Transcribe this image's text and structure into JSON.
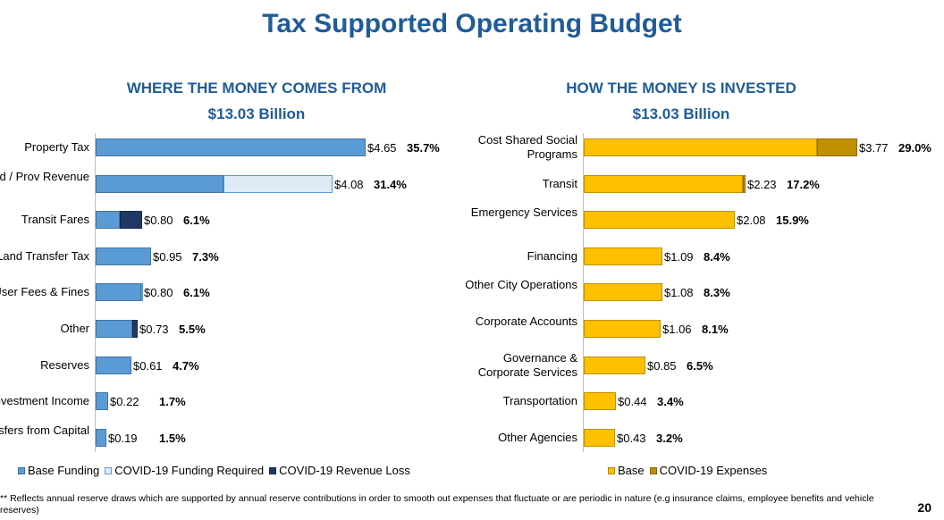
{
  "title": "Tax Supported Operating Budget",
  "footnote": "** Reflects annual reserve draws which are supported by annual reserve contributions in order to smooth out expenses that fluctuate or are periodic in nature (e.g insurance claims, employee benefits and vehicle reserves)",
  "page_number": "20",
  "colors": {
    "base_funding": "#5b9bd5",
    "covid_funding_required": "#ddebf7",
    "covid_revenue_loss": "#1f3864",
    "base": "#ffc000",
    "covid_expenses": "#bf9000"
  },
  "chart_data": [
    {
      "type": "bar",
      "orientation": "horizontal",
      "stacked": true,
      "title": "WHERE THE MONEY COMES FROM",
      "subtitle": "$13.03 Billion",
      "categories": [
        "Property Tax",
        "Fed / Prov Revenue",
        "Transit Fares",
        "Land Transfer Tax",
        "User Fees & Fines",
        "Other",
        "Reserves",
        "Investment Income",
        "Transfers from Capital"
      ],
      "series": [
        {
          "name": "Base Funding",
          "color_key": "base_funding",
          "values": [
            4.65,
            2.2,
            0.42,
            0.95,
            0.78,
            0.63,
            0.61,
            0.22,
            0.19
          ]
        },
        {
          "name": "COVID-19 Funding Required",
          "color_key": "covid_funding_required",
          "values": [
            0,
            1.88,
            0,
            0,
            0.02,
            0,
            0,
            0,
            0
          ]
        },
        {
          "name": "COVID-19 Revenue Loss",
          "color_key": "covid_revenue_loss",
          "values": [
            0,
            0,
            0.38,
            0,
            0,
            0.1,
            0,
            0,
            0
          ]
        }
      ],
      "value_labels": [
        "$4.65",
        "$4.08",
        "$0.80",
        "$0.95",
        "$0.80",
        "$0.73",
        "$0.61",
        "$0.22",
        "$0.19"
      ],
      "percent_labels": [
        "35.7%",
        "31.4%",
        "6.1%",
        "7.3%",
        "6.1%",
        "5.5%",
        "4.7%",
        "1.7%",
        "1.5%"
      ],
      "xlim": [
        0,
        4.65
      ],
      "legend": "bottom"
    },
    {
      "type": "bar",
      "orientation": "horizontal",
      "stacked": true,
      "title": "HOW THE MONEY IS INVESTED",
      "subtitle": "$13.03 Billion",
      "categories": [
        "Cost Shared Social Programs",
        "Transit",
        "Emergency Services",
        "Financing",
        "Other City Operations",
        "Corporate Accounts",
        "Governance & Corporate Services",
        "Transportation",
        "Other Agencies"
      ],
      "series": [
        {
          "name": "Base",
          "color_key": "base",
          "values": [
            3.22,
            2.19,
            2.08,
            1.09,
            1.08,
            1.06,
            0.85,
            0.44,
            0.43
          ]
        },
        {
          "name": "COVID-19 Expenses",
          "color_key": "covid_expenses",
          "values": [
            0.55,
            0.04,
            0,
            0,
            0,
            0,
            0,
            0,
            0
          ]
        }
      ],
      "value_labels": [
        "$3.77",
        "$2.23",
        "$2.08",
        "$1.09",
        "$1.08",
        "$1.06",
        "$0.85",
        "$0.44",
        "$0.43"
      ],
      "percent_labels": [
        "29.0%",
        "17.2%",
        "15.9%",
        "8.4%",
        "8.3%",
        "8.1%",
        "6.5%",
        "3.4%",
        "3.2%"
      ],
      "xlim": [
        0,
        3.77
      ],
      "legend": "bottom"
    }
  ]
}
